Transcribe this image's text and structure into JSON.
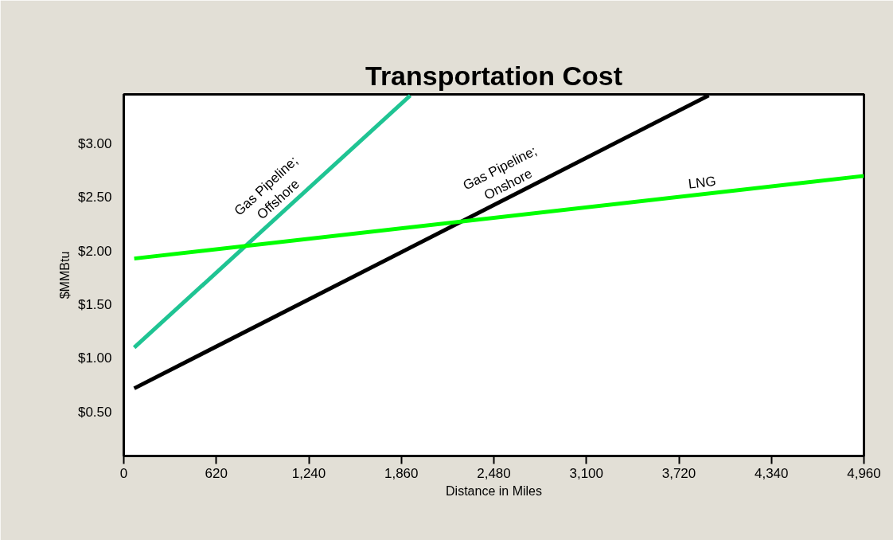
{
  "chart_data": {
    "type": "line",
    "title": "Transportation Cost",
    "xlabel": "Distance in Miles",
    "ylabel": "$MMBtu",
    "xlim": [
      0,
      4960
    ],
    "ylim": [
      0.09,
      3.46
    ],
    "xticks": [
      0,
      {
        "value": 620,
        "label": "620"
      },
      {
        "value": 1240,
        "label": "1,240"
      },
      {
        "value": 1860,
        "label": "1,860"
      },
      {
        "value": 2480,
        "label": "2,480"
      },
      {
        "value": 3100,
        "label": "3,100"
      },
      {
        "value": 3720,
        "label": "3,720"
      },
      {
        "value": 4340,
        "label": "4,340"
      },
      {
        "value": 4960,
        "label": "4,960"
      }
    ],
    "yticks": [
      {
        "value": 0.5,
        "label": "$0.50"
      },
      {
        "value": 1.0,
        "label": "$1.00"
      },
      {
        "value": 1.5,
        "label": "$1.50"
      },
      {
        "value": 2.0,
        "label": "$2.00"
      },
      {
        "value": 2.5,
        "label": "$2.50"
      },
      {
        "value": 3.0,
        "label": "$3.00"
      }
    ],
    "grid": false,
    "marker": "none",
    "line_style": "solid",
    "series": [
      {
        "name": "Gas Pipeline;\nOffshore",
        "color": "#1fc493",
        "x": [
          70,
          1920
        ],
        "values": [
          1.1,
          3.45
        ]
      },
      {
        "name": "Gas Pipeline;\nOnshore",
        "color": "#000000",
        "x": [
          70,
          3920
        ],
        "values": [
          0.72,
          3.45
        ]
      },
      {
        "name": "LNG",
        "color": "#00ff00",
        "x": [
          70,
          4960
        ],
        "values": [
          1.93,
          2.7
        ]
      }
    ]
  }
}
